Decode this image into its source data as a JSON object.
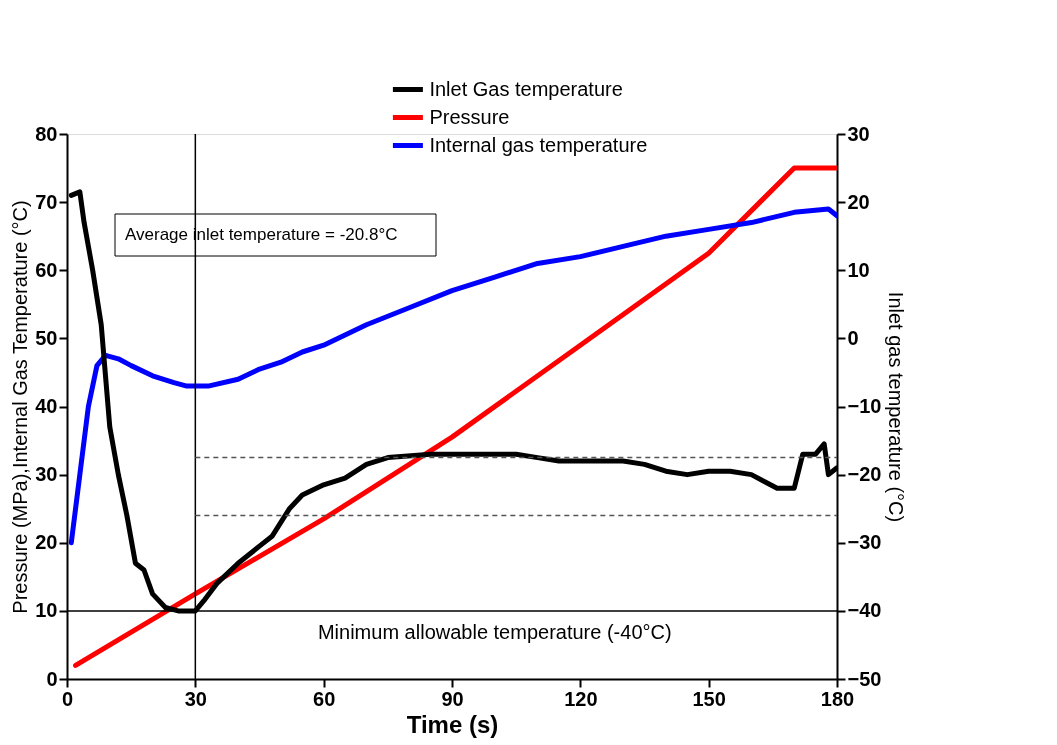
{
  "chart_data": {
    "type": "line",
    "xlabel": "Time (s)",
    "ylabel": "Pressure (MPa),Internal Gas Temperature (°C)",
    "y2label": "Inlet gas temperature (°C)",
    "xlim": [
      0,
      180
    ],
    "xticks": [
      0,
      30,
      60,
      90,
      120,
      150,
      180
    ],
    "ylim": [
      0,
      80
    ],
    "yticks": [
      0,
      10,
      20,
      30,
      40,
      50,
      60,
      70,
      80
    ],
    "y2lim": [
      -50,
      30
    ],
    "y2ticks": [
      -50,
      -40,
      -30,
      -20,
      -10,
      0,
      10,
      20,
      30
    ],
    "legend": "top",
    "grid": false,
    "line_style": "solid",
    "series": [
      {
        "name": "Inlet Gas temperature",
        "color": "#000000",
        "axis": "y2",
        "x": [
          1,
          3,
          4,
          6,
          8,
          10,
          12,
          14,
          16,
          18,
          20,
          23,
          26,
          30,
          32,
          35,
          40,
          45,
          48,
          52,
          55,
          60,
          65,
          70,
          75,
          85,
          95,
          105,
          110,
          115,
          120,
          130,
          135,
          140,
          145,
          150,
          155,
          160,
          163,
          166,
          170,
          172,
          175,
          177,
          178,
          180
        ],
        "values": [
          21,
          21.5,
          17,
          10,
          2,
          -13,
          -20,
          -26,
          -33,
          -34,
          -37.5,
          -39.5,
          -40,
          -40,
          -38.5,
          -36,
          -33,
          -30.5,
          -29,
          -25,
          -23,
          -21.5,
          -20.5,
          -18.5,
          -17.5,
          -17,
          -17,
          -17,
          -17.5,
          -18,
          -18,
          -18,
          -18.5,
          -19.5,
          -20,
          -19.5,
          -19.5,
          -20,
          -21,
          -22,
          -22,
          -17,
          -17,
          -15.5,
          -20,
          -19
        ]
      },
      {
        "name": "Pressure",
        "color": "#ff0000",
        "x": [
          2,
          30,
          60,
          90,
          120,
          150,
          170,
          180
        ],
        "values": [
          2,
          12.5,
          23.5,
          35.5,
          49,
          62.5,
          75,
          75
        ]
      },
      {
        "name": "Internal gas temperature",
        "color": "#0000ff",
        "x": [
          1,
          3,
          5,
          7,
          9,
          12,
          15,
          20,
          25,
          28,
          33,
          40,
          45,
          50,
          55,
          60,
          65,
          70,
          80,
          90,
          100,
          110,
          120,
          130,
          140,
          150,
          160,
          170,
          178,
          180
        ],
        "values": [
          20,
          30,
          40,
          46,
          47.5,
          47,
          46,
          44.5,
          43.5,
          43,
          43,
          44,
          45.5,
          46.5,
          48,
          49,
          50.5,
          52,
          54.5,
          57,
          59,
          61,
          62,
          63.5,
          65,
          66,
          67,
          68.5,
          69,
          68
        ]
      }
    ],
    "ref_lines": [
      {
        "axis": "x",
        "value": 30,
        "color": "#000000"
      },
      {
        "axis": "y2",
        "value": -40,
        "label": "Minimum allowable temperature (-40°C)",
        "color": "#000000"
      },
      {
        "axis": "y2",
        "value": -17.5,
        "color": "#555555",
        "line_style": "dashed"
      },
      {
        "axis": "y2",
        "value": -26,
        "color": "#555555",
        "line_style": "dashed"
      }
    ],
    "annotations": [
      "Average inlet temperature = -20.8°C"
    ]
  }
}
